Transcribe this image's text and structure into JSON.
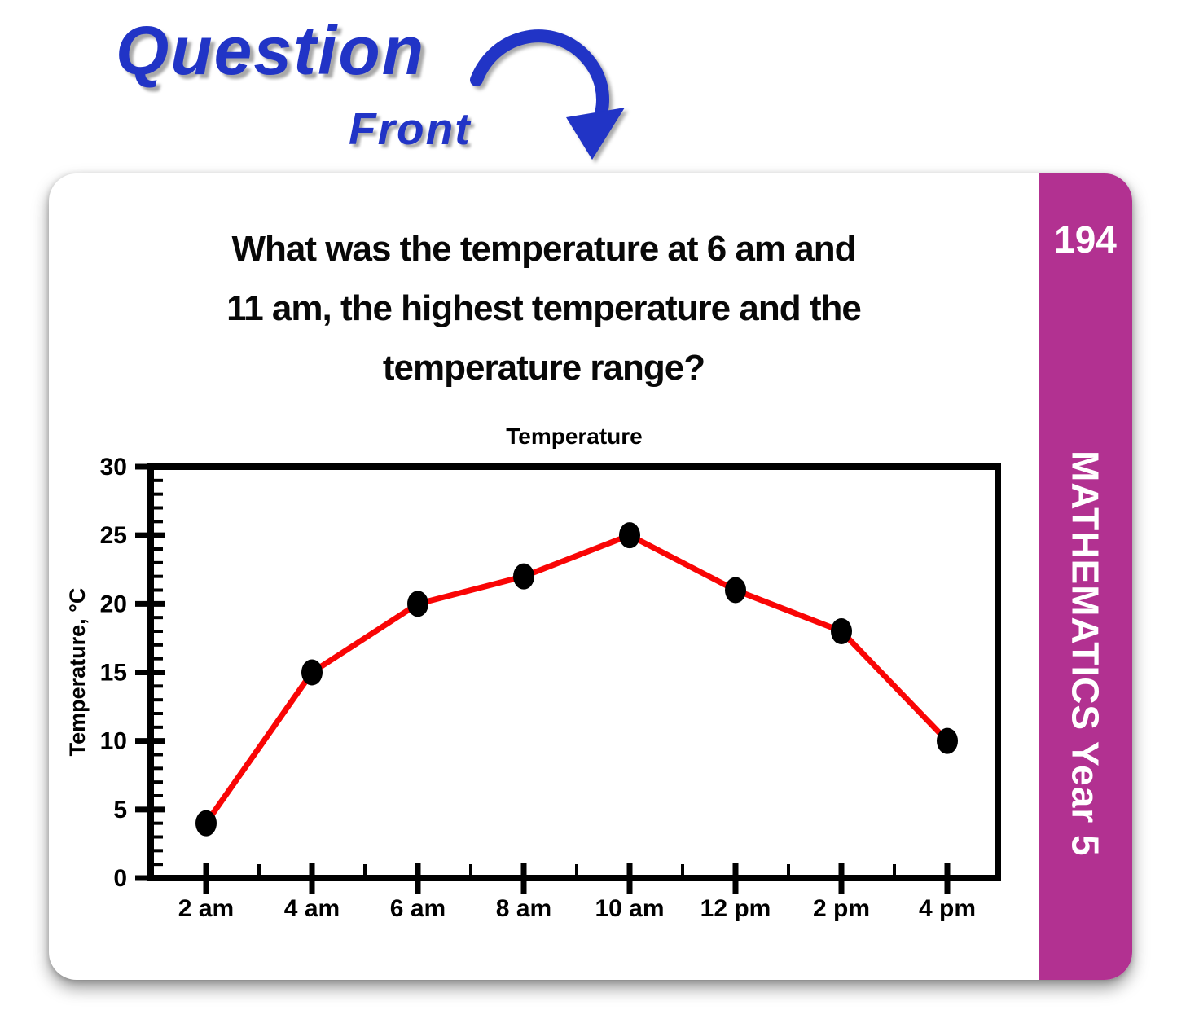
{
  "header": {
    "title": "Question",
    "subtitle": "Front",
    "arrow_icon": "curved-down-arrow",
    "accent_color": "#2134c6"
  },
  "card": {
    "question_lines": [
      "What was the temperature at 6 am and",
      "11 am, the highest temperature and the",
      "temperature range?"
    ],
    "tab": {
      "number": "194",
      "subject": "MATHEMATICS Year 5",
      "color": "#b23191",
      "text_color": "#ffffff"
    }
  },
  "chart_data": {
    "type": "line",
    "title": "Temperature",
    "categories": [
      "2 am",
      "4 am",
      "6 am",
      "8 am",
      "10 am",
      "12 pm",
      "2 pm",
      "4 pm"
    ],
    "values": [
      4,
      15,
      20,
      22,
      25,
      21,
      18,
      10
    ],
    "xlabel": "",
    "ylabel": "Temperature, °C",
    "ylim": [
      0,
      30
    ],
    "y_tick_step": 5,
    "y_minor_step": 1,
    "grid": false,
    "legend": false,
    "line_color": "#f90505",
    "marker": "ellipse",
    "marker_color": "#000000",
    "axis_color": "#000000"
  }
}
